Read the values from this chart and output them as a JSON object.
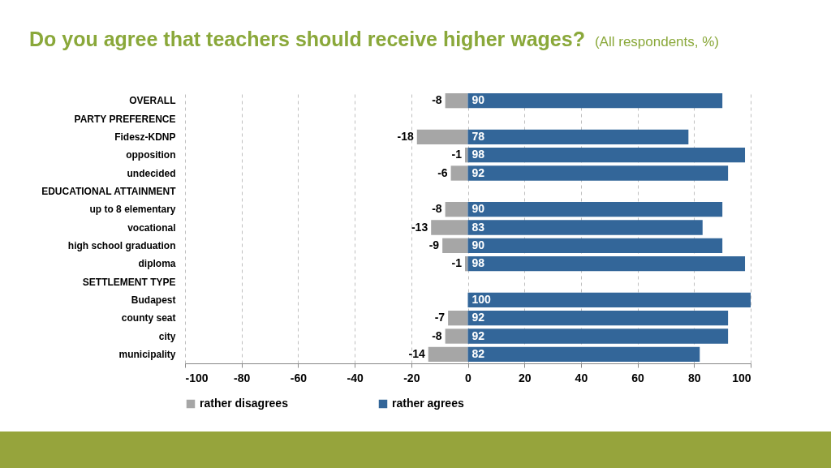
{
  "chart_data": {
    "type": "bar",
    "orientation": "horizontal",
    "title": "Do you agree that teachers should receive higher wages?",
    "subtitle": "(All respondents, %)",
    "categories": [
      "OVERALL",
      "PARTY PREFERENCE",
      "Fidesz-KDNP",
      "opposition",
      "undecided",
      "EDUCATIONAL ATTAINMENT",
      "up to 8 elementary",
      "vocational",
      "high school graduation",
      "diploma",
      "SETTLEMENT TYPE",
      "Budapest",
      "county seat",
      "city",
      "municipality"
    ],
    "series": [
      {
        "name": "rather disagrees",
        "color": "#a6a6a6",
        "values": [
          -8,
          null,
          -18,
          -1,
          -6,
          null,
          -8,
          -13,
          -9,
          -1,
          null,
          null,
          -7,
          -8,
          -14
        ]
      },
      {
        "name": "rather agrees",
        "color": "#336699",
        "values": [
          90,
          null,
          78,
          98,
          92,
          null,
          90,
          83,
          90,
          98,
          null,
          100,
          92,
          92,
          82
        ]
      }
    ],
    "xlim": [
      -100,
      100
    ],
    "xticks": [
      -100,
      -80,
      -60,
      -40,
      -20,
      0,
      20,
      40,
      60,
      80,
      100
    ],
    "grid": "x",
    "legend": "bottom",
    "data_labels": true,
    "stacked": true
  }
}
